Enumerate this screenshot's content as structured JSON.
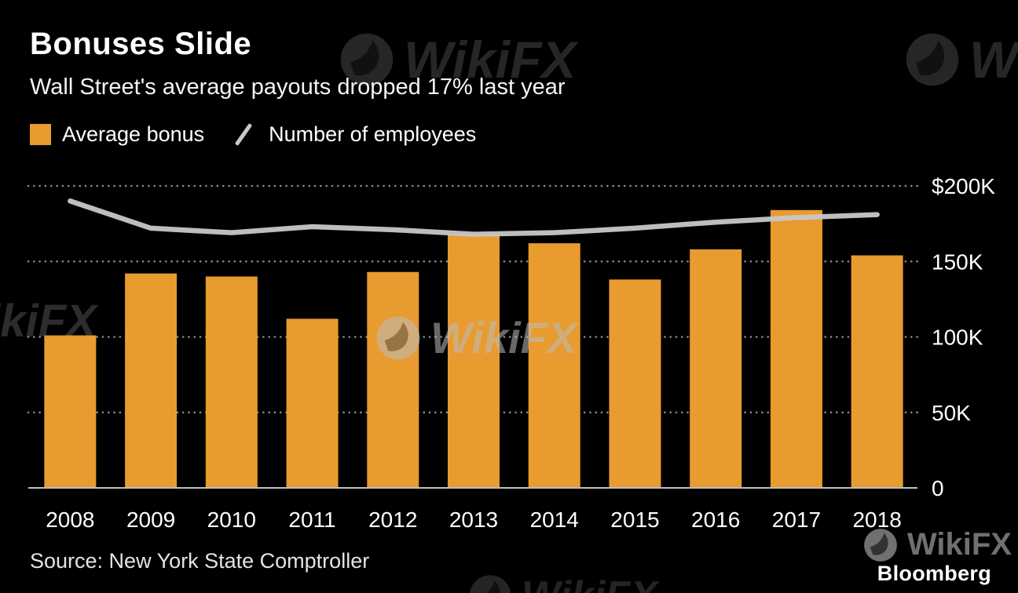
{
  "header": {
    "title": "Bonuses Slide",
    "subtitle": "Wall Street's average payouts dropped 17% last year"
  },
  "legend": {
    "items": [
      {
        "label": "Average bonus",
        "type": "bar"
      },
      {
        "label": "Number of employees",
        "type": "line"
      }
    ]
  },
  "chart_data": {
    "type": "bar+line",
    "title": "Bonuses Slide",
    "subtitle": "Wall Street's average payouts dropped 17% last year",
    "categories": [
      "2008",
      "2009",
      "2010",
      "2011",
      "2012",
      "2013",
      "2014",
      "2015",
      "2016",
      "2017",
      "2018"
    ],
    "series": [
      {
        "name": "Average bonus",
        "type": "bar",
        "unit": "$K",
        "values": [
          101,
          142,
          140,
          112,
          143,
          168,
          162,
          138,
          158,
          184,
          154
        ]
      },
      {
        "name": "Number of employees",
        "type": "line",
        "unit": "K",
        "values": [
          190,
          172,
          169,
          173,
          171,
          168,
          169,
          172,
          176,
          179,
          181
        ]
      }
    ],
    "y_ticks": [
      {
        "value": 200,
        "label": "$200K"
      },
      {
        "value": 150,
        "label": "150K"
      },
      {
        "value": 100,
        "label": "100K"
      },
      {
        "value": 50,
        "label": "50K"
      },
      {
        "value": 0,
        "label": "0"
      }
    ],
    "ylim": [
      0,
      210
    ],
    "grid": "dotted-horizontal",
    "legend_position": "top-left"
  },
  "footer": {
    "source_label": "Source: New York State Comptroller",
    "brand": "Bloomberg"
  },
  "watermark": {
    "text": "WikiFX"
  },
  "colors": {
    "background": "#000000",
    "bar": "#E89B2E",
    "line": "#C8C8C8",
    "grid": "#8A8A8A",
    "baseline": "#BFBFBF",
    "axis_text": "#FFFFFF"
  }
}
